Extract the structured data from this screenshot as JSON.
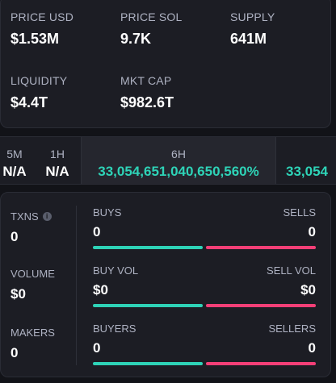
{
  "stats": [
    {
      "label": "PRICE USD",
      "value": "$1.53M"
    },
    {
      "label": "PRICE SOL",
      "value": "9.7K"
    },
    {
      "label": "SUPPLY",
      "value": "641M"
    },
    {
      "label": "LIQUIDITY",
      "value": "$4.4T"
    },
    {
      "label": "MKT CAP",
      "value": "$982.6T"
    }
  ],
  "timeframes": [
    {
      "label": "5M",
      "value": "N/A"
    },
    {
      "label": "1H",
      "value": "N/A"
    },
    {
      "label": "6H",
      "value": "33,054,651,040,650,560%"
    },
    {
      "label": "",
      "value": "33,054"
    }
  ],
  "metrics": [
    {
      "label": "TXNS",
      "value": "0"
    },
    {
      "label": "VOLUME",
      "value": "$0"
    },
    {
      "label": "MAKERS",
      "value": "0"
    }
  ],
  "rows": [
    {
      "left_label": "BUYS",
      "left_value": "0",
      "right_label": "SELLS",
      "right_value": "0"
    },
    {
      "left_label": "BUY VOL",
      "left_value": "$0",
      "right_label": "SELL VOL",
      "right_value": "$0"
    },
    {
      "left_label": "BUYERS",
      "left_value": "0",
      "right_label": "SELLERS",
      "right_value": "0"
    }
  ],
  "colors": {
    "positive": "#2ed3b7",
    "negative": "#f43f77",
    "background": "#121318",
    "card": "#1c1d24"
  },
  "icons": {
    "txns_info": "info-icon"
  }
}
